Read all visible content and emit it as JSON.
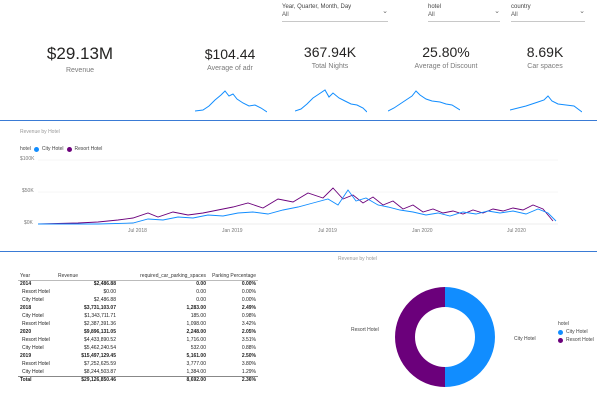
{
  "slicers": [
    {
      "title": "Year, Quarter, Month, Day",
      "value": "All"
    },
    {
      "title": "hotel",
      "value": "All"
    },
    {
      "title": "country",
      "value": "All"
    }
  ],
  "kpis": [
    {
      "value": "$29.13M",
      "label": "Revenue"
    },
    {
      "value": "$104.44",
      "label": "Average of adr"
    },
    {
      "value": "367.94K",
      "label": "Total Nights"
    },
    {
      "value": "25.80%",
      "label": "Average of Discount"
    },
    {
      "value": "8.69K",
      "label": "Car spaces"
    }
  ],
  "line_chart": {
    "title": "Revenue by Hotel",
    "legend_title": "hotel",
    "legend": [
      {
        "name": "City Hotel",
        "color": "#118DFF"
      },
      {
        "name": "Resort Hotel",
        "color": "#6B007B"
      }
    ],
    "y_ticks": [
      "$100K",
      "$50K",
      "$0K"
    ],
    "x_ticks": [
      "Jul 2018",
      "Jan 2019",
      "Jul 2019",
      "Jan 2020",
      "Jul 2020"
    ]
  },
  "donut_title": "Revenue by hotel",
  "table": {
    "headers": [
      "Year",
      "Revenue",
      "required_car_parking_spaces",
      "Parking Percentage"
    ],
    "rows": [
      {
        "type": "year",
        "cells": [
          "2014",
          "$2,486.88",
          "0.00",
          "0.00%"
        ]
      },
      {
        "type": "sub",
        "cells": [
          "Resort Hotel",
          "$0.00",
          "0.00",
          "0.00%"
        ]
      },
      {
        "type": "sub",
        "cells": [
          "City Hotel",
          "$2,486.88",
          "0.00",
          "0.00%"
        ]
      },
      {
        "type": "year",
        "cells": [
          "2018",
          "$3,731,103.07",
          "1,283.00",
          "2.49%"
        ]
      },
      {
        "type": "sub",
        "cells": [
          "City Hotel",
          "$1,343,711.71",
          "185.00",
          "0.98%"
        ]
      },
      {
        "type": "sub",
        "cells": [
          "Resort Hotel",
          "$2,387,391.36",
          "1,098.00",
          "3.42%"
        ]
      },
      {
        "type": "year",
        "cells": [
          "2020",
          "$9,896,131.05",
          "2,248.00",
          "2.05%"
        ]
      },
      {
        "type": "sub",
        "cells": [
          "Resort Hotel",
          "$4,433,890.52",
          "1,716.00",
          "3.51%"
        ]
      },
      {
        "type": "sub",
        "cells": [
          "City Hotel",
          "$5,462,240.54",
          "532.00",
          "0.88%"
        ]
      },
      {
        "type": "year",
        "cells": [
          "2019",
          "$15,497,129.45",
          "5,161.00",
          "2.50%"
        ]
      },
      {
        "type": "sub",
        "cells": [
          "Resort Hotel",
          "$7,252,625.59",
          "3,777.00",
          "3.80%"
        ]
      },
      {
        "type": "sub",
        "cells": [
          "City Hotel",
          "$8,244,503.87",
          "1,384.00",
          "1.29%"
        ]
      },
      {
        "type": "total",
        "cells": [
          "Total",
          "$29,126,850.46",
          "8,692.00",
          "2.36%"
        ]
      }
    ]
  },
  "donut": {
    "title": "",
    "legend_title": "hotel",
    "slices": [
      {
        "name": "City Hotel",
        "share": 0.5,
        "color": "#118DFF"
      },
      {
        "name": "Resort Hotel",
        "share": 0.5,
        "color": "#6B007B"
      }
    ],
    "label_left": "Resort Hotel",
    "label_right": "City Hotel"
  }
}
